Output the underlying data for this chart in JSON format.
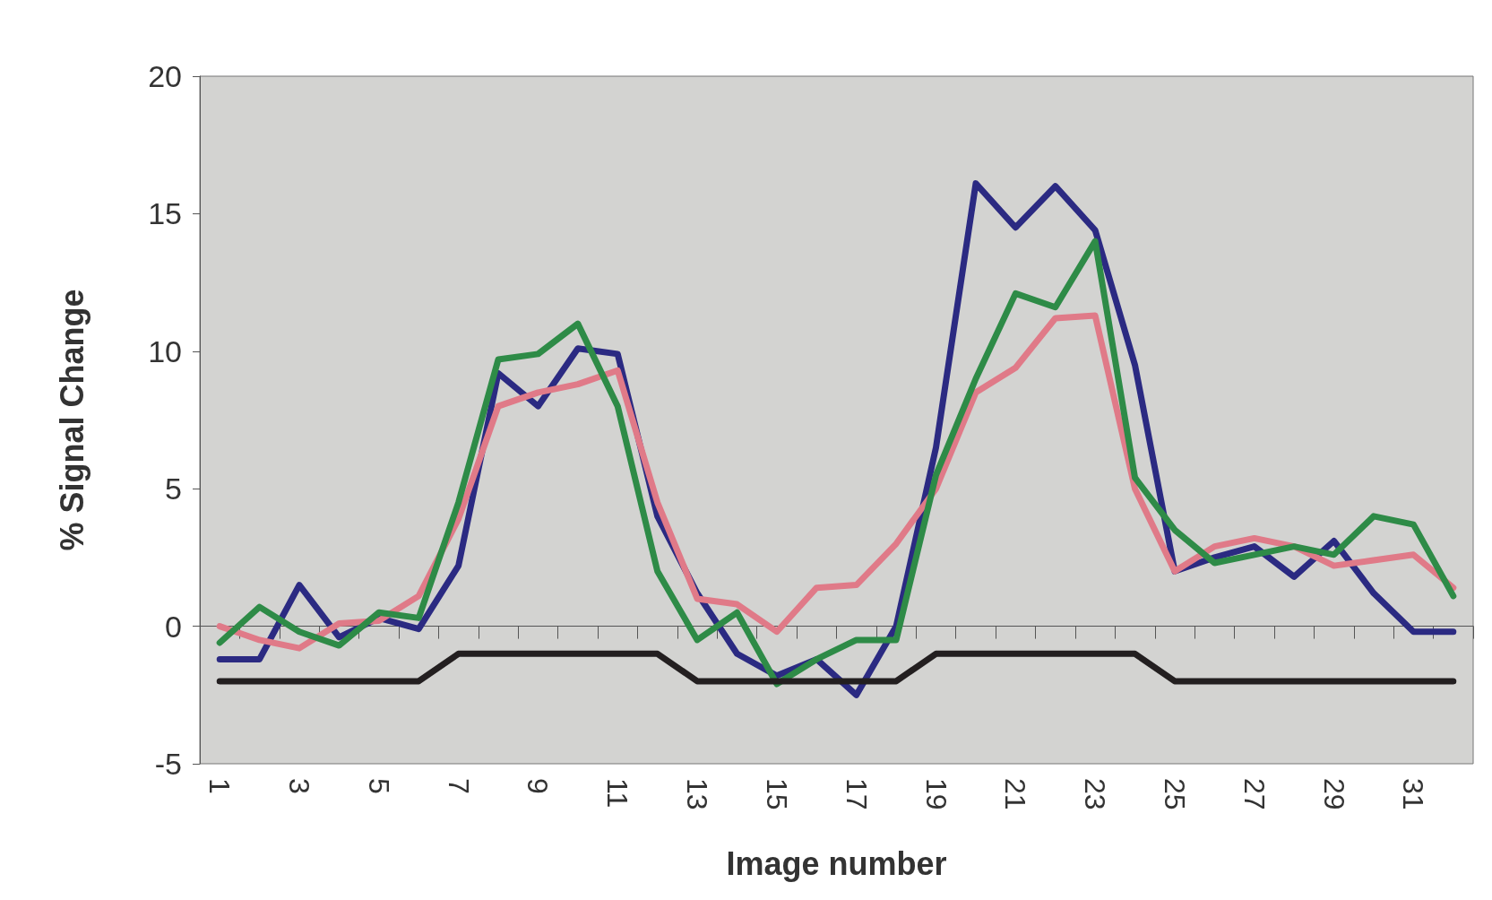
{
  "chart_data": {
    "type": "line",
    "xlabel": "Image number",
    "ylabel": "% Signal Change",
    "categories": [
      "1",
      null,
      "3",
      null,
      "5",
      null,
      "7",
      null,
      "9",
      null,
      "11",
      null,
      "13",
      null,
      "15",
      null,
      "17",
      null,
      "19",
      null,
      "21",
      null,
      "23",
      null,
      "25",
      null,
      "27",
      null,
      "29",
      null,
      "31",
      null
    ],
    "series": [
      {
        "color": "#2b2a82",
        "values": [
          -1.2,
          -1.2,
          1.5,
          -0.4,
          0.3,
          -0.1,
          2.2,
          9.2,
          8.0,
          10.1,
          9.9,
          4.0,
          1.2,
          -1.0,
          -1.8,
          -1.2,
          -2.5,
          0,
          6.5,
          16.1,
          14.5,
          16.0,
          14.4,
          9.5,
          2.0,
          2.5,
          2.9,
          1.8,
          3.1,
          1.2,
          -0.2,
          -0.2
        ]
      },
      {
        "color": "#e07a88",
        "values": [
          0,
          -0.5,
          -0.8,
          0.1,
          0.2,
          1.1,
          3.9,
          8.0,
          8.5,
          8.8,
          9.3,
          4.5,
          1.0,
          0.8,
          -0.2,
          1.4,
          1.5,
          3.0,
          5.0,
          8.5,
          9.4,
          11.2,
          11.3,
          5.0,
          2.0,
          2.9,
          3.2,
          2.9,
          2.2,
          2.4,
          2.6,
          1.4
        ]
      },
      {
        "color": "#2e8b47",
        "values": [
          -0.6,
          0.7,
          -0.2,
          -0.7,
          0.5,
          0.3,
          4.5,
          9.7,
          9.9,
          11.0,
          8.0,
          2.0,
          -0.5,
          0.5,
          -2.1,
          -1.2,
          -0.5,
          -0.5,
          5.5,
          9.0,
          12.1,
          11.6,
          14.0,
          5.4,
          3.5,
          2.3,
          2.6,
          2.9,
          2.6,
          4.0,
          3.7,
          1.1
        ]
      },
      {
        "color": "#231f20",
        "values": [
          -2,
          -2,
          -2,
          -2,
          -2,
          -2,
          -1,
          -1,
          -1,
          -1,
          -1,
          -1,
          -2,
          -2,
          -2,
          -2,
          -2,
          -2,
          -1,
          -1,
          -1,
          -1,
          -1,
          -1,
          -2,
          -2,
          -2,
          -2,
          -2,
          -2,
          -2,
          -2
        ]
      }
    ],
    "ylim": [
      -5,
      20
    ],
    "yticks": [
      -5,
      0,
      5,
      10,
      15,
      20
    ],
    "marker": "none",
    "line_style": "solid"
  }
}
